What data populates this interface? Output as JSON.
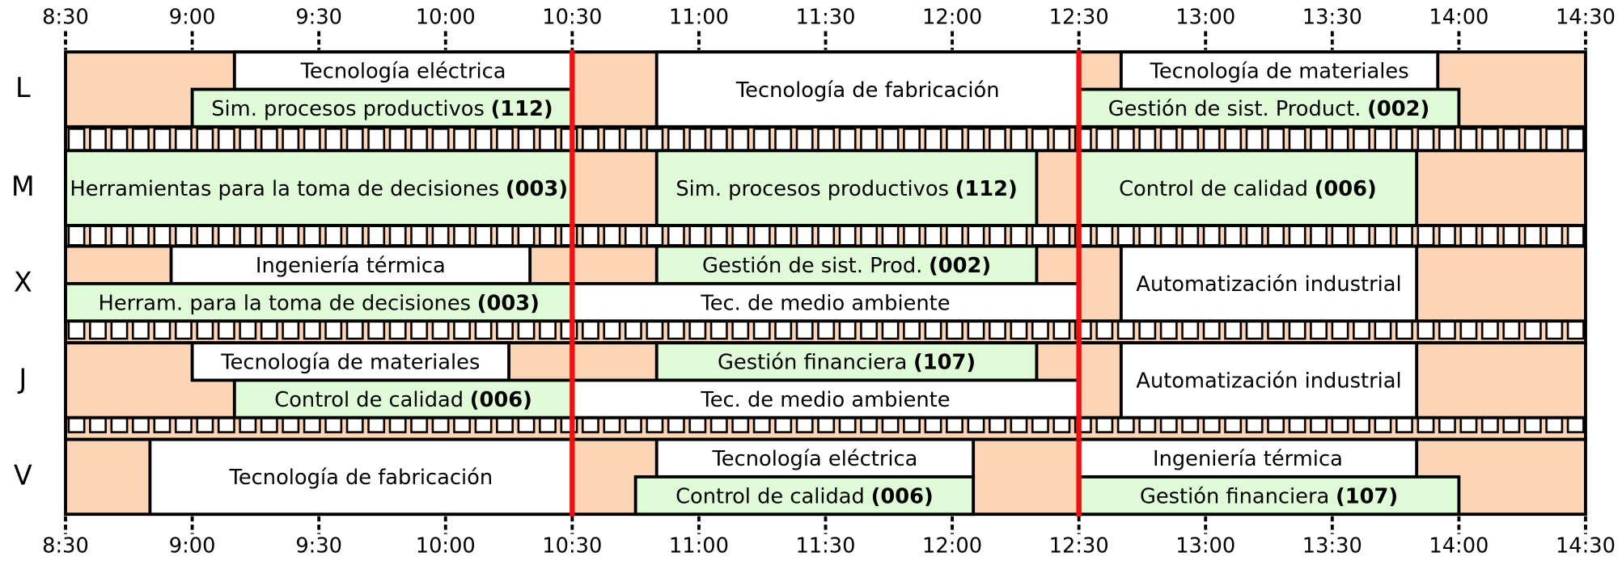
{
  "chart_data": {
    "type": "gantt",
    "xlim": [
      8.5,
      14.5
    ],
    "xticks": [
      {
        "value": 8.5,
        "label": "8:30"
      },
      {
        "value": 9,
        "label": "9:00"
      },
      {
        "value": 9.5,
        "label": "9:30"
      },
      {
        "value": 10,
        "label": "10:00"
      },
      {
        "value": 10.5,
        "label": "10:30"
      },
      {
        "value": 11,
        "label": "11:00"
      },
      {
        "value": 11.5,
        "label": "11:30"
      },
      {
        "value": 12,
        "label": "12:00"
      },
      {
        "value": 12.5,
        "label": "12:30"
      },
      {
        "value": 13,
        "label": "13:00"
      },
      {
        "value": 13.5,
        "label": "13:30"
      },
      {
        "value": 14,
        "label": "14:00"
      },
      {
        "value": 14.5,
        "label": "14:30"
      }
    ],
    "days": [
      "L",
      "M",
      "X",
      "J",
      "V"
    ],
    "background_color": "#fbd5b5",
    "highlight_times": [
      10.5,
      12.5
    ],
    "highlight_color": "#ee1111",
    "sessions": [
      {
        "day": 0,
        "row": "top",
        "start": 9.1667,
        "end": 10.5,
        "name": "Tecnología eléctrica",
        "color": "#ffffff"
      },
      {
        "day": 0,
        "row": "bottom",
        "start": 9,
        "end": 10.5,
        "name": "Sim. procesos productivos",
        "code": "(112)",
        "color": "#e0fbd8"
      },
      {
        "day": 0,
        "row": "full",
        "start": 10.8333,
        "end": 12.5,
        "name": "Tecnología de fabricación",
        "color": "#ffffff"
      },
      {
        "day": 0,
        "row": "top",
        "start": 12.6667,
        "end": 13.9167,
        "name": "Tecnología de materiales",
        "color": "#ffffff"
      },
      {
        "day": 0,
        "row": "bottom",
        "start": 12.5,
        "end": 14,
        "name": "Gestión de sist. Product.",
        "code": "(002)",
        "color": "#e0fbd8"
      },
      {
        "day": 1,
        "row": "full",
        "start": 8.5,
        "end": 10.5,
        "name": "Herramientas para la toma de decisiones",
        "code": "(003)",
        "color": "#e0fbd8"
      },
      {
        "day": 1,
        "row": "full",
        "start": 10.8333,
        "end": 12.3333,
        "name": "Sim. procesos productivos",
        "code": "(112)",
        "color": "#e0fbd8"
      },
      {
        "day": 1,
        "row": "full",
        "start": 12.5,
        "end": 13.8333,
        "name": "Control de calidad",
        "code": "(006)",
        "color": "#e0fbd8"
      },
      {
        "day": 2,
        "row": "top",
        "start": 8.9167,
        "end": 10.3333,
        "name": "Ingeniería térmica",
        "color": "#ffffff"
      },
      {
        "day": 2,
        "row": "top",
        "start": 10.8333,
        "end": 12.3333,
        "name": "Gestión de sist. Prod.",
        "code": "(002)",
        "color": "#e0fbd8"
      },
      {
        "day": 2,
        "row": "bottom",
        "start": 8.5,
        "end": 10.5,
        "name": "Herram. para la toma de decisiones",
        "code": "(003)",
        "color": "#e0fbd8"
      },
      {
        "day": 2,
        "row": "bottom",
        "start": 10.5,
        "end": 12.5,
        "name": "Tec. de medio ambiente",
        "color": "#ffffff"
      },
      {
        "day": 2,
        "row": "full",
        "start": 12.6667,
        "end": 13.8333,
        "name": "Automatización industrial",
        "color": "#ffffff"
      },
      {
        "day": 3,
        "row": "top",
        "start": 9,
        "end": 10.25,
        "name": "Tecnología de materiales",
        "color": "#ffffff"
      },
      {
        "day": 3,
        "row": "top",
        "start": 10.8333,
        "end": 12.3333,
        "name": "Gestión financiera",
        "code": "(107)",
        "color": "#e0fbd8"
      },
      {
        "day": 3,
        "row": "bottom",
        "start": 9.1667,
        "end": 10.5,
        "name": "Control de calidad",
        "code": "(006)",
        "color": "#e0fbd8"
      },
      {
        "day": 3,
        "row": "bottom",
        "start": 10.5,
        "end": 12.5,
        "name": "Tec. de medio ambiente",
        "color": "#ffffff"
      },
      {
        "day": 3,
        "row": "full",
        "start": 12.6667,
        "end": 13.8333,
        "name": "Automatización industrial",
        "color": "#ffffff"
      },
      {
        "day": 4,
        "row": "full",
        "start": 8.8333,
        "end": 10.5,
        "name": "Tecnología de fabricación",
        "color": "#ffffff"
      },
      {
        "day": 4,
        "row": "top",
        "start": 10.8333,
        "end": 12.0833,
        "name": "Tecnología eléctrica",
        "color": "#ffffff"
      },
      {
        "day": 4,
        "row": "bottom",
        "start": 10.75,
        "end": 12.0833,
        "name": "Control de calidad",
        "code": "(006)",
        "color": "#e0fbd8"
      },
      {
        "day": 4,
        "row": "top",
        "start": 12.5,
        "end": 13.8333,
        "name": "Ingeniería térmica",
        "color": "#ffffff"
      },
      {
        "day": 4,
        "row": "bottom",
        "start": 12.5,
        "end": 14,
        "name": "Gestión financiera",
        "code": "(107)",
        "color": "#e0fbd8"
      }
    ]
  }
}
